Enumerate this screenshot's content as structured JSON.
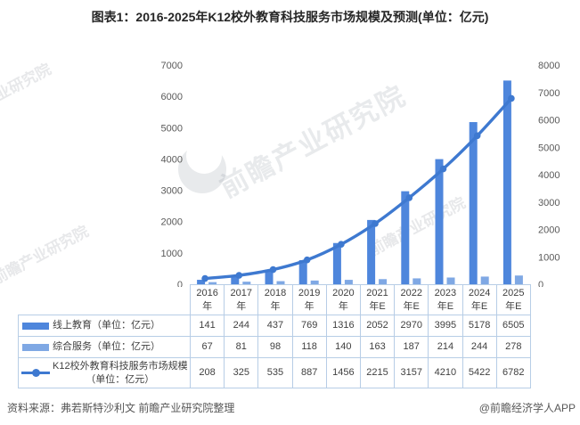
{
  "title": "图表1：2016-2025年K12校外教育科技服务市场规模及预测(单位：亿元)",
  "watermark": {
    "text": "前瞻产业研究院"
  },
  "footer": {
    "source": "资料来源：弗若斯特沙利文 前瞻产业研究院整理",
    "brand": "@前瞻经济学人APP"
  },
  "colors": {
    "bar_online": "#4E86DC",
    "bar_service": "#7FA8E4",
    "line_total": "#3E79D0",
    "table_border": "#b7cde6",
    "axis_text": "#595959"
  },
  "chart_data": {
    "type": "combo-bar-line",
    "title": "2016-2025年K12校外教育科技服务市场规模及预测(单位：亿元)",
    "categories": [
      "2016年",
      "2017年",
      "2018年",
      "2019年",
      "2020年",
      "2021年E",
      "2022年E",
      "2023年E",
      "2024年E",
      "2025年E"
    ],
    "series": [
      {
        "name": "线上教育（单位：亿元）",
        "type": "bar",
        "axis": "left",
        "color": "#4E86DC",
        "values": [
          141,
          244,
          437,
          769,
          1316,
          2052,
          2970,
          3995,
          5178,
          6505
        ]
      },
      {
        "name": "综合服务（单位：亿元）",
        "type": "bar",
        "axis": "left",
        "color": "#7FA8E4",
        "values": [
          67,
          81,
          98,
          118,
          140,
          163,
          187,
          214,
          244,
          278
        ]
      },
      {
        "name": "K12校外教育科技服务市场规模（单位：亿元）",
        "type": "line",
        "axis": "right",
        "color": "#3E79D0",
        "values": [
          208,
          325,
          535,
          887,
          1456,
          2215,
          3157,
          4210,
          5422,
          6782
        ]
      }
    ],
    "left_axis": {
      "min": 0,
      "max": 7000,
      "step": 1000
    },
    "right_axis": {
      "min": 0,
      "max": 8000,
      "step": 1000
    },
    "grid": false,
    "legend_position": "table-left-column"
  },
  "table": {
    "rows": [
      {
        "label": "线上教育（单位：亿元）",
        "label2": "",
        "legend": "bar",
        "series": 0
      },
      {
        "label": "综合服务（单位：亿元）",
        "label2": "",
        "legend": "bar",
        "series": 1
      },
      {
        "label": "K12校外教育科技服务市场规模",
        "label2": "（单位：亿元）",
        "legend": "line",
        "series": 2
      }
    ]
  }
}
